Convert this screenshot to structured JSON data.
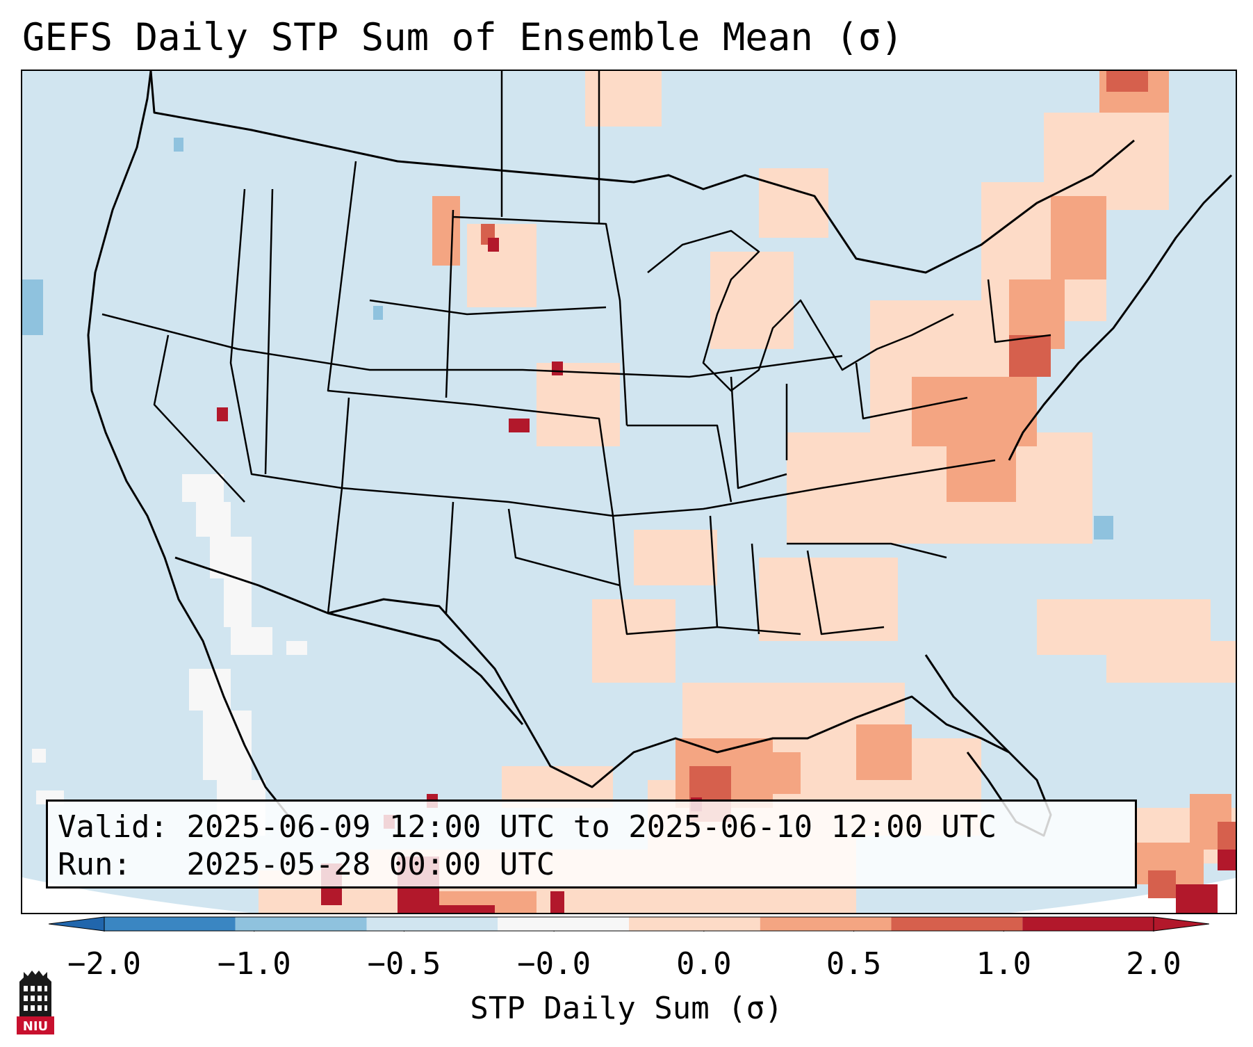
{
  "title": "GEFS Daily STP Sum of Ensemble Mean (σ)",
  "info": {
    "valid_label": "Valid:",
    "valid_value": "2025-06-09 12:00 UTC to 2025-06-10 12:00 UTC",
    "run_label": "Run:",
    "run_value": "2025-05-28 00:00 UTC"
  },
  "colorbar": {
    "label": "STP Daily Sum (σ)",
    "ticks": [
      "−2.0",
      "−1.0",
      "−0.5",
      "−0.0",
      "0.0",
      "0.5",
      "1.0",
      "2.0"
    ],
    "colors": [
      "#3a86c2",
      "#8fc2de",
      "#d1e5f0",
      "#f7f7f7",
      "#fddbc7",
      "#f4a582",
      "#d6604d",
      "#b2182b"
    ],
    "extend": "both"
  },
  "logo": {
    "text": "NIU",
    "icon": "niu-tower-icon"
  },
  "map": {
    "projection": "lambert-conformal",
    "region": "CONUS",
    "background_color": "#d1e5f0",
    "outside_color": "#ffffff",
    "border_color": "#000000"
  }
}
